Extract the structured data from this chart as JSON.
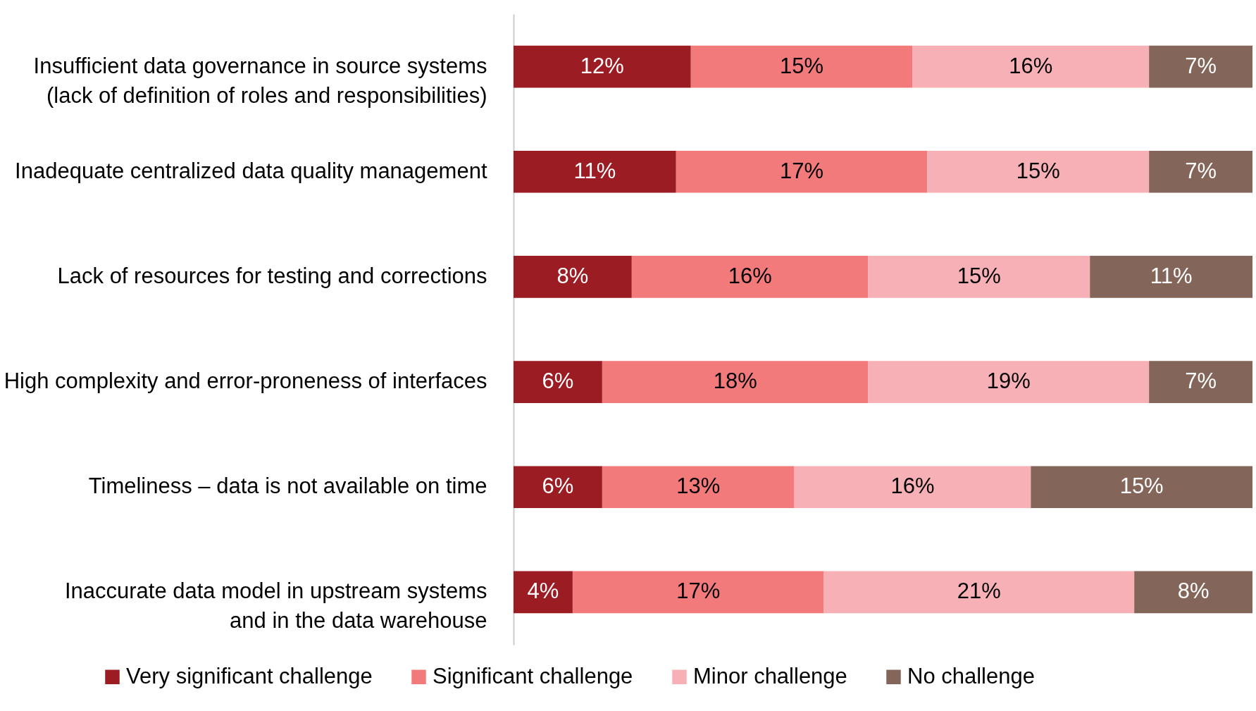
{
  "chart_data": {
    "type": "bar",
    "orientation": "horizontal",
    "stacked": true,
    "legend": "bottom",
    "tick_labels": "y",
    "categories": [
      "Insufficient data governance in source systems\n(lack of definition of roles and responsibilities)",
      "Inadequate centralized data quality management",
      "Lack of resources for testing and corrections",
      "High complexity and error-proneness of interfaces",
      "Timeliness – data is not available on time",
      "Inaccurate data model in upstream systems\nand in the data warehouse"
    ],
    "series": [
      {
        "name": "Very significant challenge",
        "color": "#9b1c22",
        "values": [
          12,
          11,
          8,
          6,
          6,
          4
        ],
        "value_labels": [
          "12%",
          "11%",
          "8%",
          "6%",
          "6%",
          "4%"
        ]
      },
      {
        "name": "Significant challenge",
        "color": "#f27a7b",
        "values": [
          15,
          17,
          16,
          18,
          13,
          17
        ],
        "value_labels": [
          "15%",
          "17%",
          "16%",
          "18%",
          "13%",
          "17%"
        ]
      },
      {
        "name": "Minor challenge",
        "color": "#f7b0b5",
        "values": [
          16,
          15,
          15,
          19,
          16,
          21
        ],
        "value_labels": [
          "16%",
          "15%",
          "15%",
          "19%",
          "16%",
          "21%"
        ]
      },
      {
        "name": "No challenge",
        "color": "#836659",
        "values": [
          7,
          7,
          11,
          7,
          15,
          8
        ],
        "value_labels": [
          "7%",
          "7%",
          "11%",
          "7%",
          "15%",
          "8%"
        ]
      }
    ]
  }
}
